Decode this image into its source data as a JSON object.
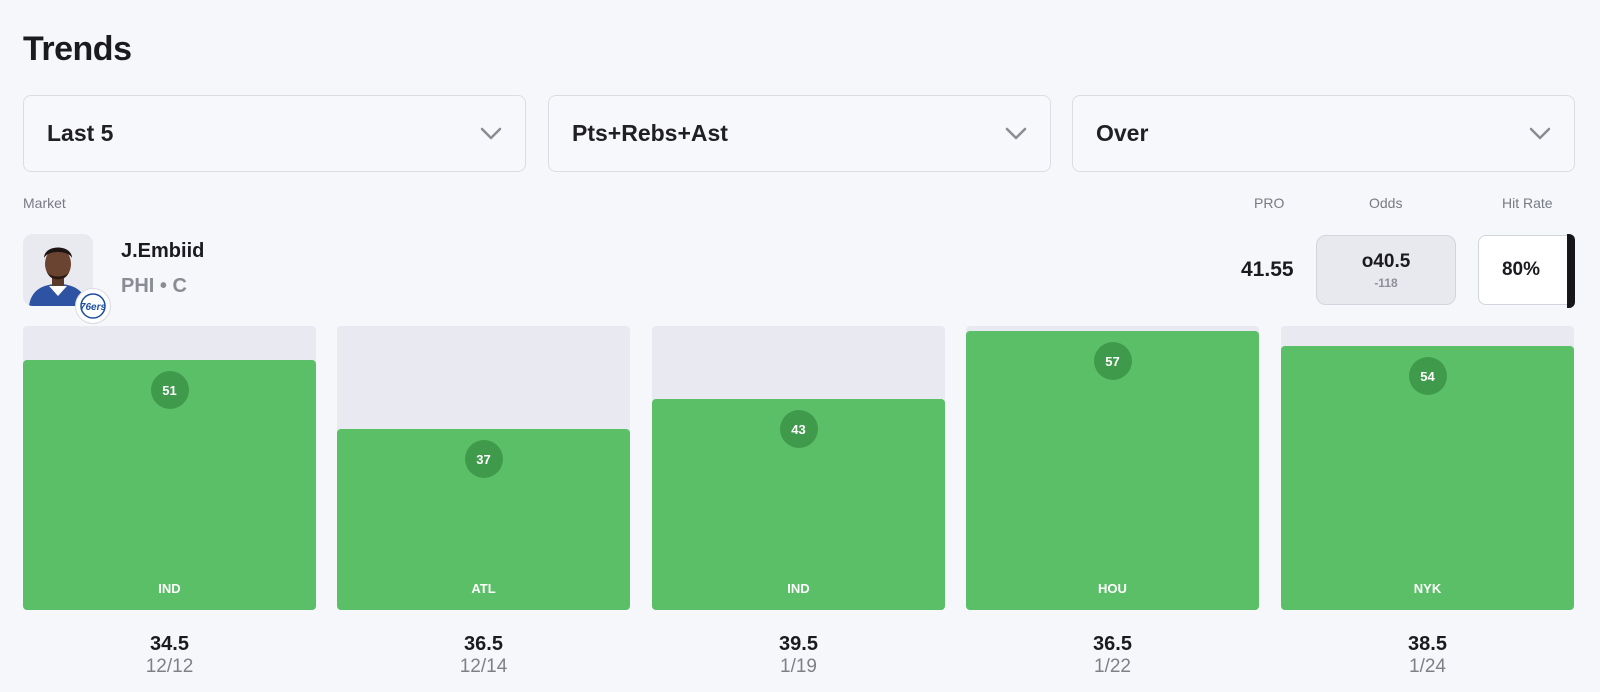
{
  "title": "Trends",
  "filters": [
    {
      "label": "Last 5"
    },
    {
      "label": "Pts+Rebs+Ast"
    },
    {
      "label": "Over"
    }
  ],
  "headers": {
    "market": "Market",
    "pro": "PRO",
    "odds": "Odds",
    "hit_rate": "Hit Rate"
  },
  "player": {
    "name": "J.Embiid",
    "team_pos": "PHI • C",
    "badge_text": "76ers",
    "pro_value": "41.55",
    "odds_line": "o40.5",
    "odds_price": "-118",
    "hit_rate": "80%"
  },
  "colors": {
    "hit": "#5bbf67",
    "bubble": "#3f9a4c",
    "bar_bg": "#e9eaf1"
  },
  "chart_data": {
    "type": "bar",
    "scale_max": 58,
    "categories": [
      "IND",
      "ATL",
      "IND",
      "HOU",
      "NYK"
    ],
    "values": [
      51,
      37,
      43,
      57,
      54
    ],
    "lines": [
      "34.5",
      "36.5",
      "39.5",
      "36.5",
      "38.5"
    ],
    "dates": [
      "12/12",
      "12/14",
      "1/19",
      "1/22",
      "1/24"
    ]
  }
}
